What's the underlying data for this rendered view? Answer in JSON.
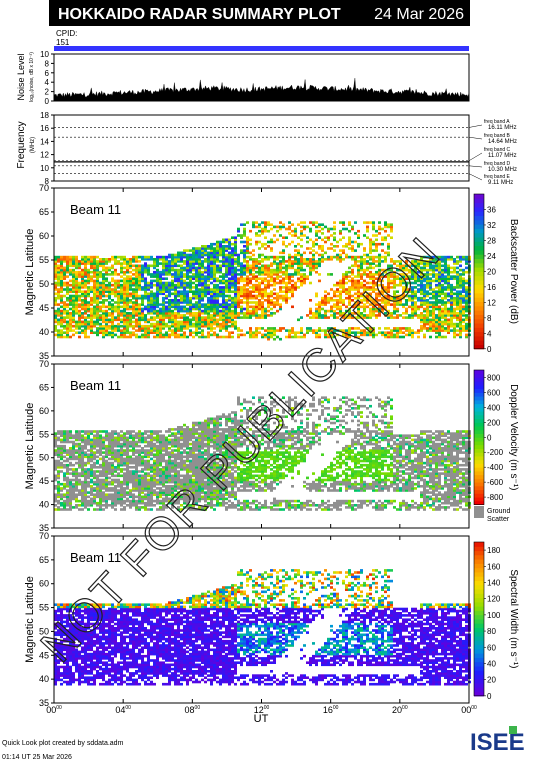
{
  "header": {
    "title": "HOKKAIDO RADAR SUMMARY PLOT",
    "date": "24 Mar 2026",
    "cpid_label": "CPID:",
    "cpid_value": "151"
  },
  "watermark": "NOT FOR PUBLICATION",
  "footer": {
    "credit": "Quick Look plot created by sddata.adm",
    "timestamp": "01:14 UT 25 Mar 2026",
    "logo_text": "ISEE"
  },
  "colors": {
    "header_bg": "#000000",
    "header_text": "#ffffff",
    "cpid_bar": "#3333ff",
    "ground_scatter": "#909090"
  },
  "chart_data": [
    {
      "type": "area",
      "name": "noise",
      "ylabel": "Noise Level",
      "ylabel_sub": "log₁₀(noise, dB x 10⁻³)",
      "ylim": [
        0,
        10
      ],
      "yticks": [
        0,
        2,
        4,
        6,
        8,
        10
      ],
      "x_hours": [
        0,
        1,
        2,
        3,
        4,
        5,
        6,
        7,
        8,
        9,
        10,
        11,
        12,
        13,
        14,
        15,
        16,
        17,
        18,
        19,
        20,
        21,
        22,
        23,
        24
      ],
      "values": [
        1.2,
        1.3,
        1.4,
        1.6,
        1.8,
        1.9,
        2.1,
        2.3,
        2.5,
        2.7,
        2.6,
        2.4,
        2.5,
        2.8,
        2.9,
        2.8,
        2.6,
        2.5,
        2.3,
        2.1,
        2.0,
        1.8,
        1.6,
        1.5,
        1.4
      ]
    },
    {
      "type": "line",
      "name": "frequency",
      "ylabel": "Frequency",
      "ylabel_unit": "(MHz)",
      "ylim": [
        8,
        18
      ],
      "yticks": [
        8,
        10,
        12,
        14,
        16,
        18
      ],
      "bands": [
        {
          "label": "freq band A",
          "value_text": "16.11 MHz",
          "mhz": 16.11
        },
        {
          "label": "freq band B",
          "value_text": "14.64 MHz",
          "mhz": 14.64
        },
        {
          "label": "freq band C",
          "value_text": "11.07 MHz",
          "mhz": 11.07
        },
        {
          "label": "freq band D",
          "value_text": "10.30 MHz",
          "mhz": 10.3
        },
        {
          "label": "freq band E",
          "value_text": "9.11 MHz",
          "mhz": 9.11
        }
      ],
      "operating_mhz": 10.9
    },
    {
      "type": "heatmap",
      "name": "power",
      "beam_label": "Beam 11",
      "ylabel": "Magnetic Latitude",
      "ylim": [
        35,
        70
      ],
      "yticks": [
        35,
        40,
        45,
        50,
        55,
        60,
        65,
        70
      ],
      "colorbar_label": "Backscatter Power (dB)",
      "colorbar_ticks": [
        0,
        4,
        8,
        12,
        16,
        20,
        24,
        28,
        32,
        36
      ],
      "colorbar_range": [
        0,
        40
      ]
    },
    {
      "type": "heatmap",
      "name": "velocity",
      "beam_label": "Beam 11",
      "ylabel": "Magnetic Latitude",
      "ylim": [
        35,
        70
      ],
      "yticks": [
        35,
        40,
        45,
        50,
        55,
        60,
        65,
        70
      ],
      "colorbar_label": "Doppler Velocity (m s⁻¹)",
      "colorbar_ticks": [
        -800,
        -600,
        -400,
        -200,
        0,
        200,
        400,
        600,
        800
      ],
      "colorbar_range": [
        -900,
        900
      ],
      "ground_scatter_label": "Ground Scatter"
    },
    {
      "type": "heatmap",
      "name": "width",
      "beam_label": "Beam 11",
      "ylabel": "Magnetic Latitude",
      "ylim": [
        35,
        70
      ],
      "yticks": [
        35,
        40,
        45,
        50,
        55,
        60,
        65,
        70
      ],
      "colorbar_label": "Spectral Width (m s⁻¹)",
      "colorbar_ticks": [
        0,
        20,
        40,
        60,
        80,
        100,
        120,
        140,
        160,
        180
      ],
      "colorbar_range": [
        0,
        190
      ]
    }
  ],
  "x_axis": {
    "label": "UT",
    "range_hours": [
      0,
      24
    ],
    "ticks": [
      {
        "hour": 0,
        "main": "00",
        "sup": "00"
      },
      {
        "hour": 4,
        "main": "04",
        "sup": "00"
      },
      {
        "hour": 8,
        "main": "08",
        "sup": "00"
      },
      {
        "hour": 12,
        "main": "12",
        "sup": "00"
      },
      {
        "hour": 16,
        "main": "16",
        "sup": "00"
      },
      {
        "hour": 20,
        "main": "20",
        "sup": "00"
      },
      {
        "hour": 24,
        "main": "00",
        "sup": "00"
      }
    ]
  }
}
